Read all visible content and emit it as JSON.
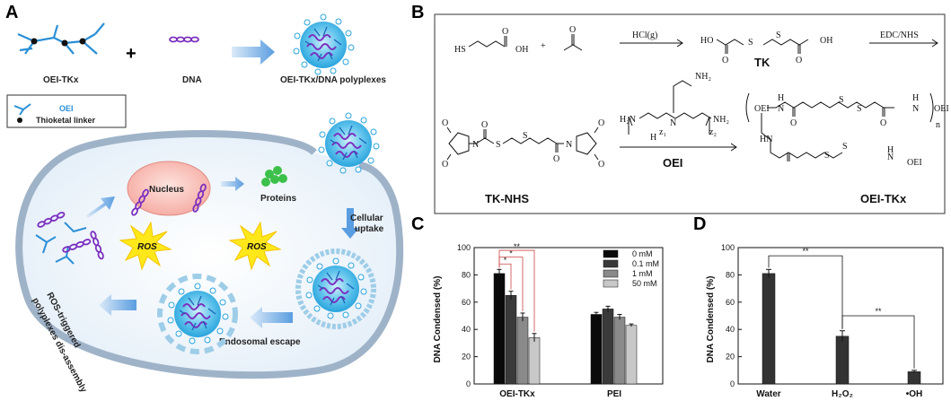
{
  "panels": {
    "A": "A",
    "B": "B",
    "C": "C",
    "D": "D"
  },
  "panelA": {
    "oei_tkx": "OEI-TKx",
    "dna": "DNA",
    "polyplexes": "OEI-TKx/DNA polyplexes",
    "legend_oei": "OEI",
    "legend_linker": "Thioketal linker",
    "nucleus": "Nucleus",
    "proteins": "Proteins",
    "cellular": "Cellular",
    "uptake": "uptake",
    "ros1": "ROS",
    "ros2": "ROS",
    "endosomal": "Endosomal escape",
    "ros_trig1": "ROS-triggered",
    "ros_trig2": "polyplexes dis-assembly",
    "plus": "+"
  },
  "panelB": {
    "hs": "HS",
    "oh": "OH",
    "plus": "+",
    "hcl": "HCl(g)",
    "ho": "HO",
    "oh2": "OH",
    "tk": "TK",
    "edc": "EDC/NHS",
    "h2n": "H₂N",
    "nh2a": "NH₂",
    "nh2b": "NH₂",
    "n1": "N",
    "n2": "N",
    "h": "H",
    "z1": "z₁",
    "z2": "z₂",
    "oei": "OEI",
    "tknhs": "TK-NHS",
    "oeitkx": "OEI-TKx",
    "p_oei1": "OEI",
    "p_oei2": "OEI",
    "p_oei3": "OEI",
    "p_h1": "H",
    "p_h2": "H",
    "p_n1": "N",
    "p_n2": "N",
    "p_hn": "HN",
    "p_n3": "N",
    "p_h3": "H",
    "p_n": "n",
    "s1": "S",
    "s2": "S",
    "s3": "S",
    "s4": "S",
    "s5": "S",
    "s6": "S",
    "s7": "S",
    "s8": "S",
    "o1": "O",
    "o2": "O",
    "o3": "O",
    "o4": "O",
    "o5": "O",
    "o6": "O",
    "o7": "O",
    "o8": "O",
    "o9": "O",
    "o10": "O",
    "o11": "O",
    "o12": "O"
  },
  "chart_data": [
    {
      "type": "bar",
      "panel": "C",
      "ylabel": "DNA Condensed (%)",
      "ylim": [
        0,
        100
      ],
      "yticks": [
        "0",
        "20",
        "40",
        "60",
        "80",
        "100"
      ],
      "categories": [
        "OEI-TKx",
        "PEI"
      ],
      "series": [
        {
          "name": "0 mM",
          "values": [
            81,
            51
          ],
          "errors": [
            3,
            1.5
          ],
          "color": "#0a0a0a"
        },
        {
          "name": "0.1 mM",
          "values": [
            65,
            55
          ],
          "errors": [
            3,
            2
          ],
          "color": "#3a3a3a"
        },
        {
          "name": "1 mM",
          "values": [
            49,
            49
          ],
          "errors": [
            3,
            2
          ],
          "color": "#8a8a8a"
        },
        {
          "name": "50 mM",
          "values": [
            34,
            43
          ],
          "errors": [
            3,
            1
          ],
          "color": "#c8c8c8"
        }
      ],
      "significance": [
        "*",
        "*",
        "**"
      ],
      "legend_position": "top-right"
    },
    {
      "type": "bar",
      "panel": "D",
      "ylabel": "DNA Condensed (%)",
      "ylim": [
        0,
        100
      ],
      "yticks": [
        "0",
        "20",
        "40",
        "60",
        "80",
        "100"
      ],
      "categories": [
        "Water",
        "H₂O₂",
        "•OH"
      ],
      "values": [
        81,
        35,
        9
      ],
      "errors": [
        3,
        4,
        1
      ],
      "color": "#333333",
      "significance": [
        "**",
        "**"
      ]
    }
  ]
}
